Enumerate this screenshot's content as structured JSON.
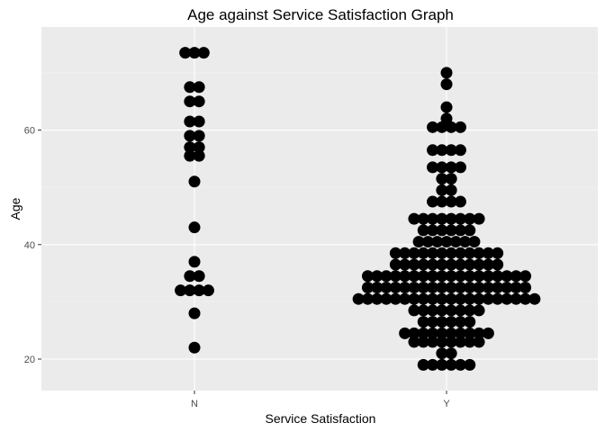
{
  "chart_data": {
    "type": "scatter",
    "subtype": "dotplot",
    "title": "Age against Service Satisfaction Graph",
    "xlabel": "Service Satisfaction",
    "ylabel": "Age",
    "categories": [
      "N",
      "Y"
    ],
    "ylim": [
      14.5,
      78
    ],
    "yticks": [
      20,
      40,
      60
    ],
    "grid": true,
    "background_color": "#ebebeb",
    "grid_color": "#ffffff",
    "point_color": "#000000",
    "rows": [
      {
        "category": "N",
        "age": 22,
        "count": 1
      },
      {
        "category": "N",
        "age": 28,
        "count": 1
      },
      {
        "category": "N",
        "age": 32,
        "count": 4
      },
      {
        "category": "N",
        "age": 34.5,
        "count": 2
      },
      {
        "category": "N",
        "age": 37,
        "count": 1
      },
      {
        "category": "N",
        "age": 43,
        "count": 1
      },
      {
        "category": "N",
        "age": 51,
        "count": 1
      },
      {
        "category": "N",
        "age": 55.5,
        "count": 2
      },
      {
        "category": "N",
        "age": 57,
        "count": 2
      },
      {
        "category": "N",
        "age": 59,
        "count": 2
      },
      {
        "category": "N",
        "age": 61.5,
        "count": 2
      },
      {
        "category": "N",
        "age": 65,
        "count": 2
      },
      {
        "category": "N",
        "age": 67.5,
        "count": 2
      },
      {
        "category": "N",
        "age": 73.5,
        "count": 3
      },
      {
        "category": "Y",
        "age": 19,
        "count": 6
      },
      {
        "category": "Y",
        "age": 21,
        "count": 2
      },
      {
        "category": "Y",
        "age": 23,
        "count": 8
      },
      {
        "category": "Y",
        "age": 24.5,
        "count": 10
      },
      {
        "category": "Y",
        "age": 26.5,
        "count": 6
      },
      {
        "category": "Y",
        "age": 28.5,
        "count": 8
      },
      {
        "category": "Y",
        "age": 30.5,
        "count": 20
      },
      {
        "category": "Y",
        "age": 32.5,
        "count": 18
      },
      {
        "category": "Y",
        "age": 34.5,
        "count": 18
      },
      {
        "category": "Y",
        "age": 36.5,
        "count": 12
      },
      {
        "category": "Y",
        "age": 38.5,
        "count": 12
      },
      {
        "category": "Y",
        "age": 40.5,
        "count": 7
      },
      {
        "category": "Y",
        "age": 42.5,
        "count": 6
      },
      {
        "category": "Y",
        "age": 44.5,
        "count": 8
      },
      {
        "category": "Y",
        "age": 47.5,
        "count": 4
      },
      {
        "category": "Y",
        "age": 49.5,
        "count": 2
      },
      {
        "category": "Y",
        "age": 51.5,
        "count": 2
      },
      {
        "category": "Y",
        "age": 53.5,
        "count": 4
      },
      {
        "category": "Y",
        "age": 56.5,
        "count": 4
      },
      {
        "category": "Y",
        "age": 60.5,
        "count": 4
      },
      {
        "category": "Y",
        "age": 62,
        "count": 1
      },
      {
        "category": "Y",
        "age": 64,
        "count": 1
      },
      {
        "category": "Y",
        "age": 68,
        "count": 1
      },
      {
        "category": "Y",
        "age": 70,
        "count": 1
      }
    ]
  }
}
